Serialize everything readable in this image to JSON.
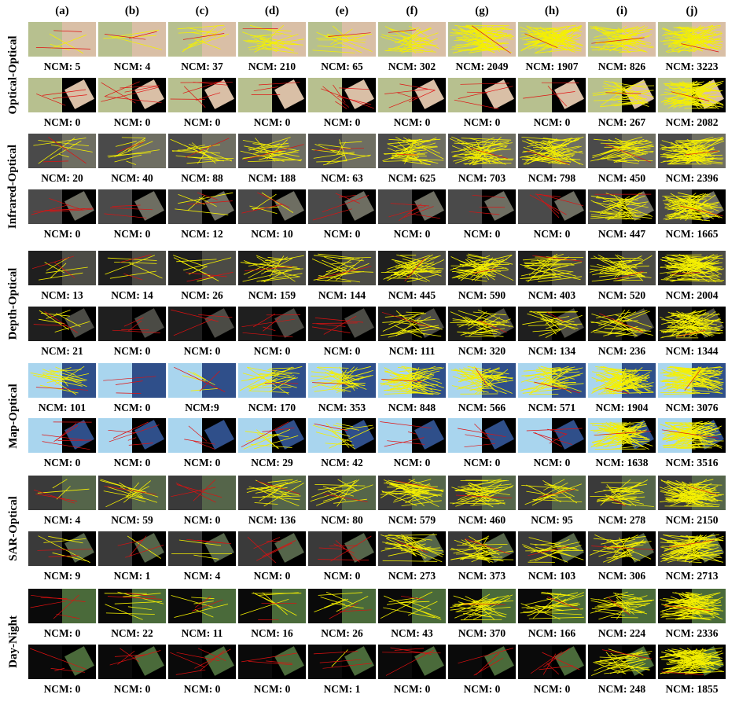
{
  "figure": {
    "column_labels": [
      "(a)",
      "(b)",
      "(c)",
      "(d)",
      "(e)",
      "(f)",
      "(g)",
      "(h)",
      "(i)",
      "(j)"
    ],
    "groups": [
      {
        "label": "Optical-Optical",
        "theme": "optical",
        "rows": [
          {
            "transform": "affine",
            "ncm": [
              "NCM: 5",
              "NCM: 4",
              "NCM: 37",
              "NCM: 210",
              "NCM: 65",
              "NCM: 302",
              "NCM: 2049",
              "NCM: 1907",
              "NCM: 826",
              "NCM: 3223"
            ]
          },
          {
            "transform": "rotated",
            "ncm": [
              "NCM: 0",
              "NCM: 0",
              "NCM: 0",
              "NCM: 0",
              "NCM: 0",
              "NCM: 0",
              "NCM: 0",
              "NCM: 0",
              "NCM: 267",
              "NCM: 2082"
            ]
          }
        ]
      },
      {
        "label": "Infrared-Optical",
        "theme": "infrared",
        "rows": [
          {
            "transform": "affine",
            "ncm": [
              "NCM: 20",
              "NCM: 40",
              "NCM: 88",
              "NCM: 188",
              "NCM: 63",
              "NCM: 625",
              "NCM: 703",
              "NCM: 798",
              "NCM: 450",
              "NCM: 2396"
            ]
          },
          {
            "transform": "rotated",
            "ncm": [
              "NCM: 0",
              "NCM: 0",
              "NCM: 12",
              "NCM: 10",
              "NCM: 0",
              "NCM: 0",
              "NCM: 0",
              "NCM: 0",
              "NCM: 447",
              "NCM: 1665"
            ]
          }
        ]
      },
      {
        "label": "Depth-Optical",
        "theme": "depth",
        "rows": [
          {
            "transform": "affine",
            "ncm": [
              "NCM: 13",
              "NCM: 14",
              "NCM: 26",
              "NCM: 159",
              "NCM: 144",
              "NCM: 445",
              "NCM: 590",
              "NCM: 403",
              "NCM: 520",
              "NCM: 2004"
            ]
          },
          {
            "transform": "rotated",
            "ncm": [
              "NCM: 21",
              "NCM: 0",
              "NCM: 0",
              "NCM: 0",
              "NCM: 0",
              "NCM: 111",
              "NCM: 320",
              "NCM: 134",
              "NCM: 236",
              "NCM: 1344"
            ]
          }
        ]
      },
      {
        "label": "Map-Optical",
        "theme": "map",
        "rows": [
          {
            "transform": "affine",
            "ncm": [
              "NCM: 101",
              "NCM: 0",
              "NCM:9",
              "NCM: 170",
              "NCM: 353",
              "NCM: 848",
              "NCM: 566",
              "NCM: 571",
              "NCM: 1904",
              "NCM: 3076"
            ]
          },
          {
            "transform": "rotated",
            "ncm": [
              "NCM: 0",
              "NCM: 0",
              "NCM: 0",
              "NCM: 29",
              "NCM: 42",
              "NCM: 0",
              "NCM: 0",
              "NCM: 0",
              "NCM: 1638",
              "NCM: 3516"
            ]
          }
        ]
      },
      {
        "label": "SAR-Optical",
        "theme": "sar",
        "rows": [
          {
            "transform": "affine",
            "ncm": [
              "NCM: 4",
              "NCM: 59",
              "NCM: 0",
              "NCM: 136",
              "NCM: 80",
              "NCM: 579",
              "NCM: 460",
              "NCM: 95",
              "NCM: 278",
              "NCM: 2150"
            ]
          },
          {
            "transform": "rotated",
            "ncm": [
              "NCM: 9",
              "NCM: 1",
              "NCM: 4",
              "NCM: 0",
              "NCM: 0",
              "NCM: 273",
              "NCM: 373",
              "NCM: 103",
              "NCM: 306",
              "NCM: 2713"
            ]
          }
        ]
      },
      {
        "label": "Day-Night",
        "theme": "daynight",
        "rows": [
          {
            "transform": "affine",
            "ncm": [
              "NCM: 0",
              "NCM: 22",
              "NCM: 11",
              "NCM: 16",
              "NCM: 26",
              "NCM: 43",
              "NCM: 370",
              "NCM: 166",
              "NCM: 224",
              "NCM: 2336"
            ]
          },
          {
            "transform": "rotated",
            "ncm": [
              "NCM: 0",
              "NCM: 0",
              "NCM: 0",
              "NCM: 0",
              "NCM: 1",
              "NCM: 0",
              "NCM: 0",
              "NCM: 0",
              "NCM: 248",
              "NCM: 1855"
            ]
          }
        ]
      }
    ],
    "colors": {
      "correct_match": "#f5f000",
      "incorrect_match": "#e01010",
      "optical_left": "#b7c08f",
      "optical_right": "#d9bfa6",
      "infrared_left": "#4a4a4a",
      "infrared_right": "#6e6e62",
      "depth_left": "#1f1f1f",
      "depth_right": "#4b4b45",
      "map_left": "#a9d5ee",
      "map_right": "#2f4f8a",
      "sar_left": "#3a3a3a",
      "sar_right": "#55654a",
      "daynight_left": "#0a0a0a",
      "daynight_right": "#4a6a3a"
    }
  }
}
